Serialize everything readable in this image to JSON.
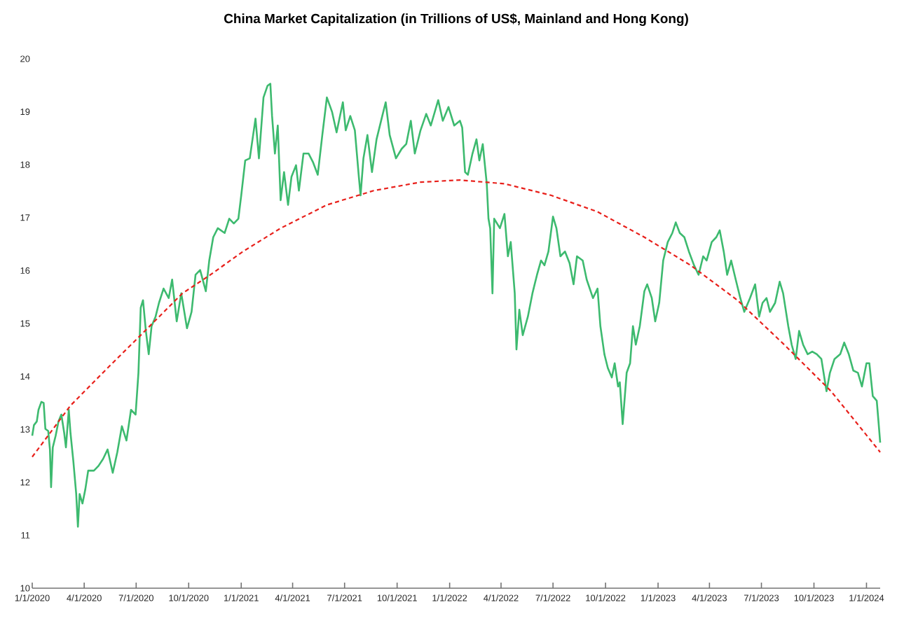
{
  "chart_data": {
    "type": "line",
    "title": "China Market Capitalization (in Trillions of US$, Mainland and Hong Kong)",
    "xlim": [
      "2020-01-01",
      "2024-01-25"
    ],
    "ylim": [
      10,
      20
    ],
    "yticks": [
      10,
      11,
      12,
      13,
      14,
      15,
      16,
      17,
      18,
      19,
      20
    ],
    "xticks": [
      {
        "value": "2020-01-01",
        "label": "1/1/2020"
      },
      {
        "value": "2020-04-01",
        "label": "4/1/2020"
      },
      {
        "value": "2020-07-01",
        "label": "7/1/2020"
      },
      {
        "value": "2020-10-01",
        "label": "10/1/2020"
      },
      {
        "value": "2021-01-01",
        "label": "1/1/2021"
      },
      {
        "value": "2021-04-01",
        "label": "4/1/2021"
      },
      {
        "value": "2021-07-01",
        "label": "7/1/2021"
      },
      {
        "value": "2021-10-01",
        "label": "10/1/2021"
      },
      {
        "value": "2022-01-01",
        "label": "1/1/2022"
      },
      {
        "value": "2022-04-01",
        "label": "4/1/2022"
      },
      {
        "value": "2022-07-01",
        "label": "7/1/2022"
      },
      {
        "value": "2022-10-01",
        "label": "10/1/2022"
      },
      {
        "value": "2023-01-01",
        "label": "1/1/2023"
      },
      {
        "value": "2023-04-01",
        "label": "4/1/2023"
      },
      {
        "value": "2023-07-01",
        "label": "7/1/2023"
      },
      {
        "value": "2023-10-01",
        "label": "10/1/2023"
      },
      {
        "value": "2024-01-01",
        "label": "1/1/2024"
      }
    ],
    "series": [
      {
        "color": "#3dba6f",
        "line_style": "solid",
        "x": [
          "2020-01-01",
          "2020-01-04",
          "2020-01-09",
          "2020-01-12",
          "2020-01-17",
          "2020-01-21",
          "2020-01-24",
          "2020-01-29",
          "2020-02-01",
          "2020-02-03",
          "2020-02-06",
          "2020-02-11",
          "2020-02-16",
          "2020-02-21",
          "2020-02-26",
          "2020-02-29",
          "2020-03-05",
          "2020-03-08",
          "2020-03-13",
          "2020-03-18",
          "2020-03-21",
          "2020-03-24",
          "2020-03-29",
          "2020-04-03",
          "2020-04-08",
          "2020-04-18",
          "2020-04-26",
          "2020-05-04",
          "2020-05-12",
          "2020-05-21",
          "2020-05-29",
          "2020-06-06",
          "2020-06-14",
          "2020-06-22",
          "2020-06-30",
          "2020-07-05",
          "2020-07-09",
          "2020-07-13",
          "2020-07-18",
          "2020-07-23",
          "2020-07-28",
          "2020-08-04",
          "2020-08-10",
          "2020-08-18",
          "2020-08-27",
          "2020-09-02",
          "2020-09-10",
          "2020-09-18",
          "2020-09-28",
          "2020-10-06",
          "2020-10-13",
          "2020-10-21",
          "2020-10-31",
          "2020-11-06",
          "2020-11-13",
          "2020-11-21",
          "2020-12-03",
          "2020-12-11",
          "2020-12-19",
          "2020-12-27",
          "2021-01-01",
          "2021-01-08",
          "2021-01-16",
          "2021-01-26",
          "2021-02-01",
          "2021-02-09",
          "2021-02-16",
          "2021-02-21",
          "2021-02-24",
          "2021-03-01",
          "2021-03-06",
          "2021-03-11",
          "2021-03-17",
          "2021-03-24",
          "2021-03-30",
          "2021-04-07",
          "2021-04-12",
          "2021-04-20",
          "2021-04-29",
          "2021-05-07",
          "2021-05-15",
          "2021-05-23",
          "2021-05-31",
          "2021-06-09",
          "2021-06-17",
          "2021-06-28",
          "2021-07-03",
          "2021-07-11",
          "2021-07-19",
          "2021-07-26",
          "2021-07-29",
          "2021-08-03",
          "2021-08-10",
          "2021-08-18",
          "2021-08-26",
          "2021-09-05",
          "2021-09-11",
          "2021-09-18",
          "2021-09-29",
          "2021-10-09",
          "2021-10-17",
          "2021-10-25",
          "2021-11-01",
          "2021-11-11",
          "2021-11-21",
          "2021-11-29",
          "2021-12-12",
          "2021-12-20",
          "2021-12-30",
          "2022-01-09",
          "2022-01-19",
          "2022-01-23",
          "2022-01-28",
          "2022-02-02",
          "2022-02-10",
          "2022-02-17",
          "2022-02-22",
          "2022-02-28",
          "2022-03-07",
          "2022-03-10",
          "2022-03-13",
          "2022-03-17",
          "2022-03-20",
          "2022-03-30",
          "2022-04-07",
          "2022-04-13",
          "2022-04-18",
          "2022-04-25",
          "2022-04-28",
          "2022-05-03",
          "2022-05-09",
          "2022-05-18",
          "2022-05-26",
          "2022-06-03",
          "2022-06-10",
          "2022-06-16",
          "2022-06-23",
          "2022-07-01",
          "2022-07-07",
          "2022-07-14",
          "2022-07-22",
          "2022-07-30",
          "2022-08-06",
          "2022-08-12",
          "2022-08-22",
          "2022-08-29",
          "2022-09-09",
          "2022-09-17",
          "2022-09-22",
          "2022-09-29",
          "2022-10-05",
          "2022-10-12",
          "2022-10-17",
          "2022-10-23",
          "2022-10-26",
          "2022-10-31",
          "2022-11-07",
          "2022-11-13",
          "2022-11-18",
          "2022-11-23",
          "2022-11-30",
          "2022-12-08",
          "2022-12-13",
          "2022-12-21",
          "2022-12-27",
          "2023-01-03",
          "2023-01-10",
          "2023-01-18",
          "2023-01-26",
          "2023-02-01",
          "2023-02-08",
          "2023-02-16",
          "2023-02-24",
          "2023-03-05",
          "2023-03-13",
          "2023-03-21",
          "2023-03-27",
          "2023-04-05",
          "2023-04-13",
          "2023-04-19",
          "2023-04-26",
          "2023-05-02",
          "2023-05-09",
          "2023-05-17",
          "2023-05-25",
          "2023-06-01",
          "2023-06-11",
          "2023-06-20",
          "2023-06-27",
          "2023-07-03",
          "2023-07-10",
          "2023-07-16",
          "2023-07-25",
          "2023-08-02",
          "2023-08-08",
          "2023-08-17",
          "2023-08-23",
          "2023-08-30",
          "2023-09-05",
          "2023-09-12",
          "2023-09-20",
          "2023-09-28",
          "2023-10-06",
          "2023-10-14",
          "2023-10-23",
          "2023-10-29",
          "2023-11-06",
          "2023-11-16",
          "2023-11-23",
          "2023-12-01",
          "2023-12-09",
          "2023-12-17",
          "2023-12-24",
          "2024-01-01",
          "2024-01-06",
          "2024-01-12",
          "2024-01-19",
          "2024-01-22",
          "2024-01-25"
        ],
        "values": [
          12.88,
          13.08,
          13.15,
          13.37,
          13.52,
          13.5,
          13.01,
          12.97,
          12.62,
          11.91,
          12.66,
          12.88,
          13.15,
          13.28,
          12.93,
          12.66,
          13.37,
          12.93,
          12.4,
          11.78,
          11.16,
          11.78,
          11.6,
          11.87,
          12.22,
          12.22,
          12.31,
          12.44,
          12.62,
          12.18,
          12.57,
          13.06,
          12.79,
          13.37,
          13.28,
          14.07,
          15.3,
          15.44,
          14.86,
          14.42,
          14.95,
          15.13,
          15.39,
          15.66,
          15.48,
          15.83,
          15.04,
          15.57,
          14.91,
          15.22,
          15.92,
          16.01,
          15.61,
          16.19,
          16.63,
          16.8,
          16.71,
          16.98,
          16.89,
          16.98,
          17.42,
          18.08,
          18.12,
          18.87,
          18.12,
          19.27,
          19.49,
          19.53,
          18.92,
          18.21,
          18.74,
          17.33,
          17.86,
          17.24,
          17.77,
          17.99,
          17.51,
          18.21,
          18.21,
          18.04,
          17.81,
          18.56,
          19.27,
          19.0,
          18.61,
          19.18,
          18.65,
          18.92,
          18.65,
          17.77,
          17.42,
          18.12,
          18.56,
          17.86,
          18.48,
          18.92,
          19.18,
          18.56,
          18.12,
          18.3,
          18.39,
          18.83,
          18.21,
          18.65,
          18.96,
          18.74,
          19.22,
          18.83,
          19.09,
          18.74,
          18.83,
          18.7,
          17.86,
          17.81,
          18.21,
          18.48,
          18.08,
          18.39,
          17.64,
          16.98,
          16.8,
          15.57,
          16.98,
          16.8,
          17.07,
          16.27,
          16.54,
          15.57,
          14.51,
          15.26,
          14.78,
          15.13,
          15.57,
          15.92,
          16.19,
          16.1,
          16.36,
          17.02,
          16.8,
          16.27,
          16.36,
          16.14,
          15.74,
          16.27,
          16.19,
          15.83,
          15.48,
          15.66,
          14.95,
          14.42,
          14.16,
          13.98,
          14.25,
          13.81,
          13.89,
          13.1,
          14.07,
          14.25,
          14.95,
          14.6,
          14.95,
          15.61,
          15.74,
          15.48,
          15.04,
          15.39,
          16.19,
          16.54,
          16.71,
          16.91,
          16.71,
          16.63,
          16.36,
          16.1,
          15.92,
          16.27,
          16.19,
          16.54,
          16.63,
          16.76,
          16.36,
          15.92,
          16.19,
          15.83,
          15.48,
          15.22,
          15.48,
          15.74,
          15.13,
          15.39,
          15.48,
          15.22,
          15.39,
          15.79,
          15.57,
          14.95,
          14.6,
          14.33,
          14.86,
          14.6,
          14.42,
          14.47,
          14.42,
          14.33,
          13.72,
          14.07,
          14.33,
          14.42,
          14.64,
          14.42,
          14.11,
          14.07,
          13.81,
          14.25,
          14.25,
          13.63,
          13.54,
          13.15,
          12.75
        ]
      },
      {
        "color": "#e8201b",
        "line_style": "dashed",
        "x": [
          "2020-01-01",
          "2020-03-08",
          "2020-05-12",
          "2020-07-09",
          "2020-09-20",
          "2020-11-08",
          "2021-01-04",
          "2021-03-11",
          "2021-05-31",
          "2021-08-21",
          "2021-11-11",
          "2022-01-19",
          "2022-04-07",
          "2022-06-28",
          "2022-09-17",
          "2022-12-08",
          "2023-02-27",
          "2023-05-20",
          "2023-08-10",
          "2023-10-31",
          "2024-01-25"
        ],
        "values": [
          12.48,
          13.45,
          14.16,
          14.78,
          15.57,
          15.92,
          16.36,
          16.8,
          17.24,
          17.51,
          17.67,
          17.71,
          17.64,
          17.42,
          17.11,
          16.63,
          16.1,
          15.44,
          14.6,
          13.72,
          12.57
        ]
      }
    ]
  }
}
